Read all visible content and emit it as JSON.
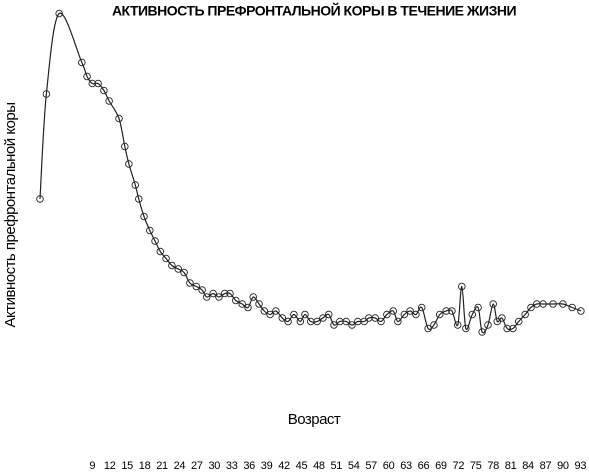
{
  "chart_data": {
    "type": "line",
    "title": "АКТИВНОСТЬ ПРЕФРОНТАЛЬНОЙ КОРЫ В ТЕЧЕНИЕ ЖИЗНИ",
    "x_label": "Возраст",
    "y_label": "Активность префронтальной коры",
    "x": [
      0,
      1.1,
      3.3,
      7.2,
      8.1,
      9,
      10,
      11,
      11.9,
      13.6,
      14.6,
      15.3,
      16.4,
      17,
      17.9,
      18.9,
      19.8,
      20.7,
      21.7,
      22.7,
      23.8,
      24.8,
      25.8,
      26.9,
      27.9,
      28.7,
      29.8,
      30.8,
      31.8,
      32.7,
      33.7,
      34.8,
      35.8,
      36.7,
      37.7,
      38.6,
      39.6,
      40.6,
      41.7,
      42.7,
      43.7,
      44.8,
      45.6,
      46.6,
      47.7,
      48.7,
      49.7,
      50.6,
      51.6,
      52.7,
      53.7,
      54.7,
      55.8,
      56.6,
      57.7,
      58.7,
      59.7,
      60.8,
      61.6,
      62.7,
      63.7,
      64.7,
      65.7,
      66.8,
      67.8,
      68.8,
      69.9,
      70.9,
      71.9,
      72.6,
      73.3,
      74.4,
      75.4,
      76.1,
      77.1,
      78,
      78.7,
      79.5,
      80.4,
      81.4,
      82.4,
      83.5,
      84.5,
      85.5,
      86.6,
      88.3,
      90,
      91.6,
      93.1
    ],
    "values": [
      46,
      76,
      99,
      85,
      81,
      79,
      79,
      77,
      74,
      69,
      61,
      56,
      50,
      46,
      41,
      37,
      34,
      31,
      29,
      27,
      26,
      25,
      22,
      21,
      20,
      18,
      19,
      18,
      19,
      19,
      17,
      16,
      15,
      18,
      16,
      14,
      13,
      14,
      12,
      11,
      13,
      11,
      13,
      11,
      11,
      12,
      13,
      10,
      11,
      11,
      10,
      11,
      11,
      12,
      12,
      11,
      13,
      14,
      11,
      13,
      14,
      13,
      15,
      9,
      10,
      13,
      14,
      14,
      10,
      21,
      9,
      13,
      15,
      8,
      10,
      16,
      11,
      12,
      9,
      9,
      11,
      13,
      15,
      16,
      16,
      16,
      16,
      15,
      14
    ],
    "color": "#222222",
    "xlim": [
      0,
      93.2
    ],
    "ylim": [
      0,
      100
    ],
    "xticks": [
      9,
      12,
      15,
      18,
      21,
      24,
      27,
      30,
      33,
      36,
      39,
      42,
      45,
      48,
      51,
      54,
      57,
      60,
      63,
      66,
      69,
      72,
      75,
      78,
      81,
      84,
      87,
      90,
      93
    ],
    "markers": true
  }
}
